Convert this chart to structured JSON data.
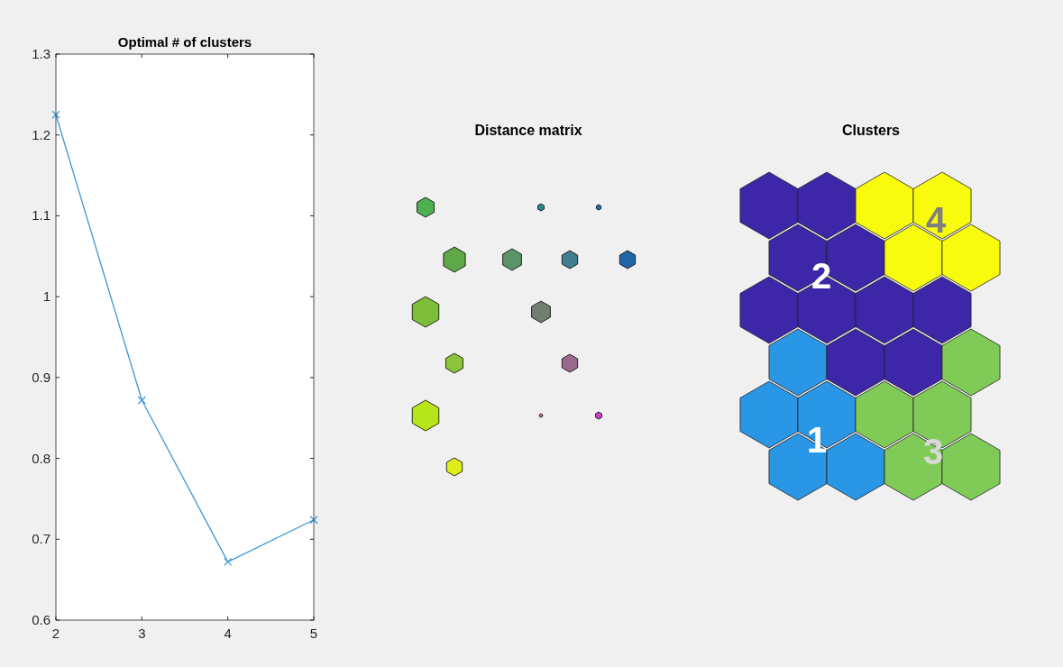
{
  "chart_data": [
    {
      "type": "line",
      "title": "Optimal # of clusters",
      "x": [
        2,
        3,
        4,
        5
      ],
      "series": [
        {
          "color": "#3d97d6",
          "values": [
            1.225,
            0.872,
            0.672,
            0.724
          ]
        }
      ],
      "xlim": [
        2,
        5
      ],
      "xticks": [
        2,
        3,
        4,
        5
      ],
      "ylim": [
        0.6,
        1.3
      ],
      "yticks": [
        0.6,
        0.7,
        0.8,
        0.9,
        1,
        1.1,
        1.2,
        1.3
      ],
      "marker": "cross",
      "grid": false
    },
    {
      "type": "other",
      "title": "Distance matrix"
    },
    {
      "type": "other",
      "title": "Clusters",
      "annotations": [
        "1",
        "2",
        "3",
        "4"
      ]
    }
  ]
}
